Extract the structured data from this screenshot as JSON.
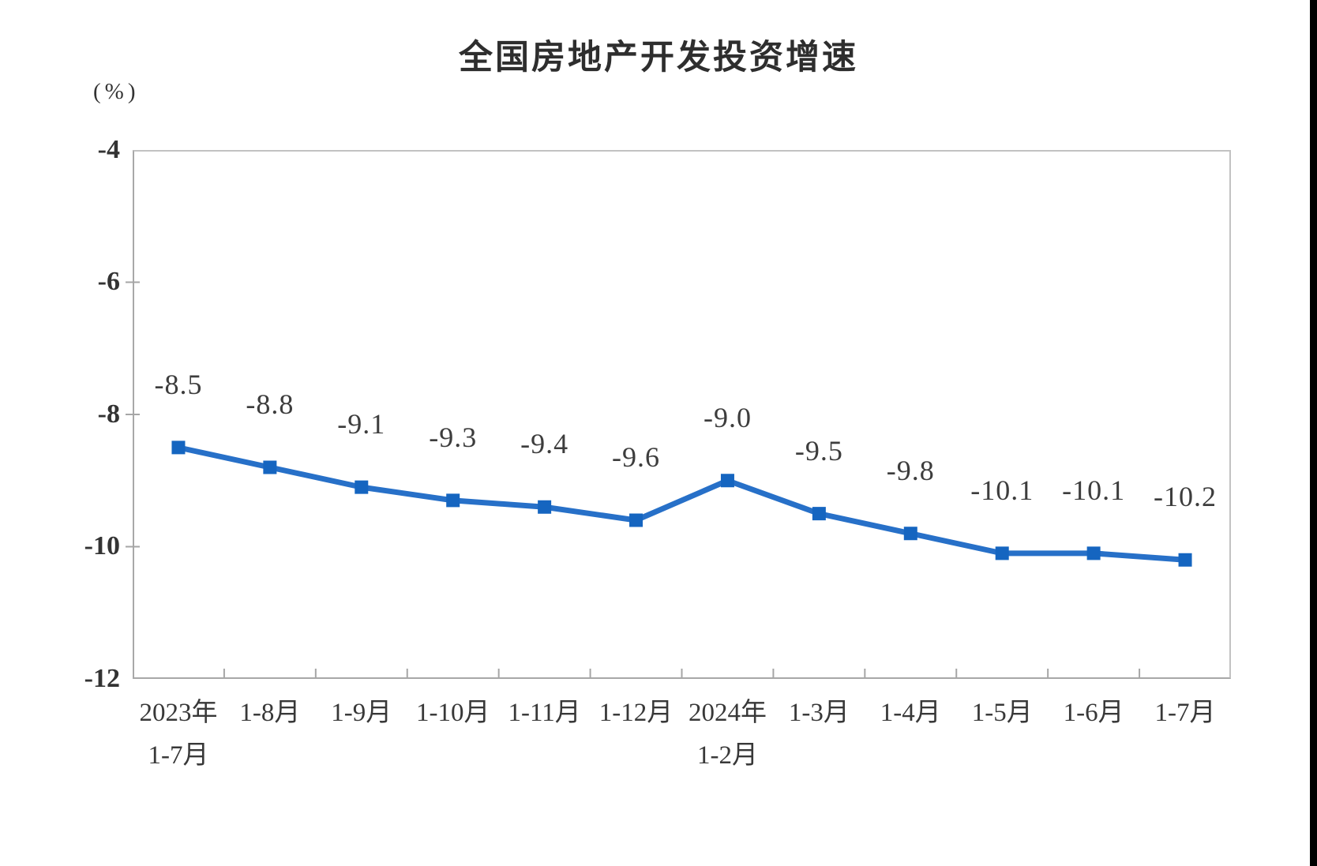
{
  "page": {
    "background_color": "#ffffff",
    "right_edge_bar_color": "#000000"
  },
  "chart_data": {
    "type": "line",
    "title": "全国房地产开发投资增速",
    "unit_label": "(%)",
    "categories": [
      {
        "line1": "2023年",
        "line2": "1-7月"
      },
      {
        "line1": "1-8月",
        "line2": ""
      },
      {
        "line1": "1-9月",
        "line2": ""
      },
      {
        "line1": "1-10月",
        "line2": ""
      },
      {
        "line1": "1-11月",
        "line2": ""
      },
      {
        "line1": "1-12月",
        "line2": ""
      },
      {
        "line1": "2024年",
        "line2": "1-2月"
      },
      {
        "line1": "1-3月",
        "line2": ""
      },
      {
        "line1": "1-4月",
        "line2": ""
      },
      {
        "line1": "1-5月",
        "line2": ""
      },
      {
        "line1": "1-6月",
        "line2": ""
      },
      {
        "line1": "1-7月",
        "line2": ""
      }
    ],
    "values": [
      -8.5,
      -8.8,
      -9.1,
      -9.3,
      -9.4,
      -9.6,
      -9.0,
      -9.5,
      -9.8,
      -10.1,
      -10.1,
      -10.2
    ],
    "data_labels": [
      "-8.5",
      "-8.8",
      "-9.1",
      "-9.3",
      "-9.4",
      "-9.6",
      "-9.0",
      "-9.5",
      "-9.8",
      "-10.1",
      "-10.1",
      "-10.2"
    ],
    "y_tick_labels": [
      "-4",
      "-6",
      "-8",
      "-10",
      "-12"
    ],
    "ylim": [
      -12,
      -4
    ],
    "xlabel": "",
    "ylabel": "(%)",
    "grid": false,
    "legend": "none",
    "line_color": "#2770c8",
    "marker_color": "#1565c0",
    "marker_shape": "square",
    "axis_color": "#a6a6a6"
  }
}
